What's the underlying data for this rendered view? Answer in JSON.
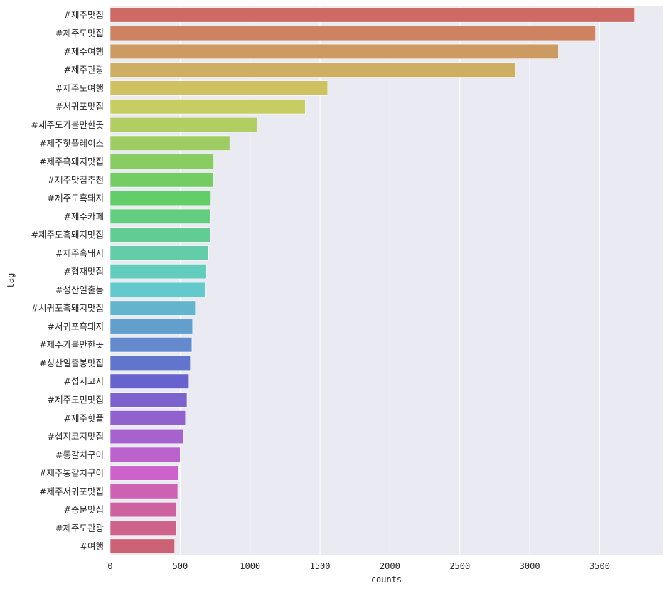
{
  "chart_data": {
    "type": "bar",
    "orientation": "horizontal",
    "xlabel": "counts",
    "ylabel": "tag",
    "xlim": [
      0,
      3950
    ],
    "x_ticks": [
      0,
      500,
      1000,
      1500,
      2000,
      2500,
      3000,
      3500
    ],
    "grid": true,
    "categories": [
      "#제주맛집",
      "#제주도맛집",
      "#제주여행",
      "#제주관광",
      "#제주도여행",
      "#서귀포맛집",
      "#제주도가볼만한곳",
      "#제주핫플레이스",
      "#제주흑돼지맛집",
      "#제주맛집추천",
      "#제주도흑돼지",
      "#제주카페",
      "#제주도흑돼지맛집",
      "#제주흑돼지",
      "#협재맛집",
      "#성산일출봉",
      "#서귀포흑돼지맛집",
      "#서귀포흑돼지",
      "#제주가볼만한곳",
      "#성산일출봉맛집",
      "#섭지코지",
      "#제주도민맛집",
      "#제주핫플",
      "#섭지코지맛집",
      "#통갈치구이",
      "#제주통갈치구이",
      "#제주서귀포맛집",
      "#중문맛집",
      "#제주도관광",
      "#여행"
    ],
    "values": [
      3750,
      3470,
      3205,
      2900,
      1555,
      1395,
      1050,
      855,
      740,
      738,
      720,
      718,
      716,
      703,
      688,
      682,
      609,
      589,
      584,
      573,
      563,
      549,
      538,
      520,
      500,
      490,
      483,
      475,
      474,
      461
    ],
    "colors": [
      "#cd6a64",
      "#cd8362",
      "#cd9a62",
      "#cdae62",
      "#cdc162",
      "#c6cd62",
      "#b2cd62",
      "#9dcd62",
      "#88cd62",
      "#73cd62",
      "#62cd69",
      "#62cd7e",
      "#62cd93",
      "#62cda8",
      "#62cdbd",
      "#62c9cd",
      "#62b5cd",
      "#629fcd",
      "#628acd",
      "#6275cd",
      "#6762cd",
      "#7c62cd",
      "#9162cd",
      "#a662cd",
      "#bb62cd",
      "#cd62ca",
      "#cd62b5",
      "#cd62a0",
      "#cd628b",
      "#cd6276"
    ],
    "background": "#eaeaf2",
    "grid_color": "#ffffff"
  }
}
